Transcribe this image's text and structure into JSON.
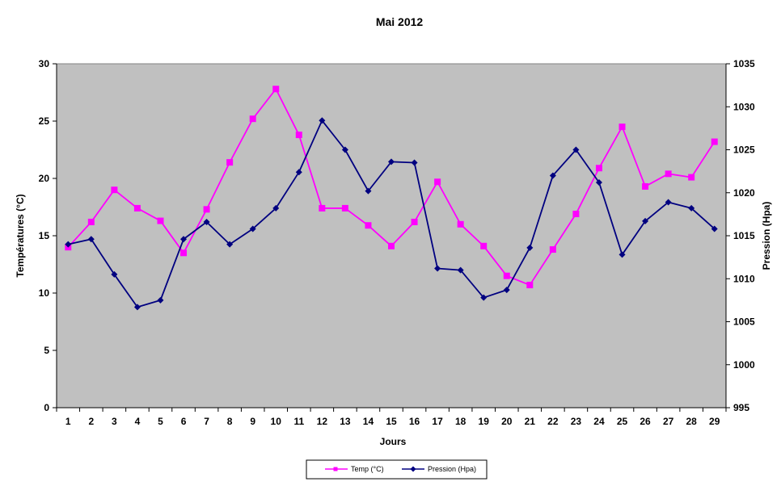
{
  "chart_data": {
    "type": "line",
    "title": "Mai 2012",
    "xlabel": "Jours",
    "ylabel_left": "Températures (°C)",
    "ylabel_right": "Pression (Hpa)",
    "categories": [
      "1",
      "2",
      "3",
      "4",
      "5",
      "6",
      "7",
      "8",
      "9",
      "10",
      "11",
      "12",
      "13",
      "14",
      "15",
      "16",
      "17",
      "18",
      "19",
      "20",
      "21",
      "22",
      "23",
      "24",
      "25",
      "26",
      "27",
      "28",
      "29"
    ],
    "y_left": {
      "min": 0,
      "max": 30,
      "ticks": [
        "0",
        "5",
        "10",
        "15",
        "20",
        "25",
        "30"
      ]
    },
    "y_right": {
      "min": 995,
      "max": 1035,
      "ticks": [
        "995",
        "1000",
        "1005",
        "1010",
        "1015",
        "1020",
        "1025",
        "1030",
        "1035"
      ]
    },
    "series": [
      {
        "name": "Temp (°C)",
        "axis": "left",
        "color": "#ff00ff",
        "marker": "square",
        "values": [
          14.0,
          16.2,
          19.0,
          17.4,
          16.3,
          13.5,
          17.3,
          21.4,
          25.2,
          27.8,
          23.8,
          17.4,
          17.4,
          15.9,
          14.1,
          16.2,
          19.7,
          16.0,
          14.1,
          11.5,
          10.7,
          13.8,
          16.9,
          20.9,
          24.5,
          19.3,
          20.4,
          20.1,
          23.2
        ]
      },
      {
        "name": "Pression (Hpa)",
        "axis": "right",
        "color": "#000080",
        "marker": "diamond",
        "values": [
          1014.0,
          1014.6,
          1010.5,
          1006.7,
          1007.5,
          1014.6,
          1016.6,
          1014.0,
          1015.8,
          1018.2,
          1022.4,
          1028.4,
          1025.0,
          1020.2,
          1023.6,
          1023.5,
          1011.2,
          1011.0,
          1007.8,
          1008.7,
          1013.6,
          1022.0,
          1025.0,
          1021.2,
          1012.8,
          1016.7,
          1018.9,
          1018.2,
          1015.8
        ]
      }
    ],
    "grid": false,
    "legend_position": "bottom"
  }
}
